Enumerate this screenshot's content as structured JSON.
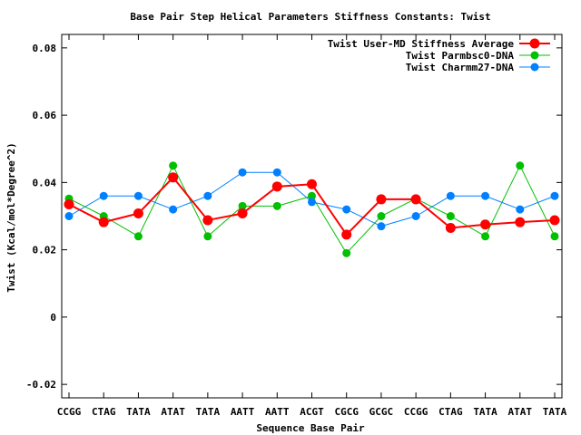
{
  "chart_data": {
    "type": "line",
    "title": "Base Pair Step Helical Parameters Stiffness Constants: Twist",
    "xlabel": "Sequence Base Pair",
    "ylabel": "Twist (Kcal/mol*Degree^2)",
    "categories": [
      "CCGG",
      "CTAG",
      "TATA",
      "ATAT",
      "TATA",
      "AATT",
      "AATT",
      "ACGT",
      "CGCG",
      "GCGC",
      "CCGG",
      "CTAG",
      "TATA",
      "ATAT",
      "TATA"
    ],
    "ylim": [
      -0.024,
      0.084
    ],
    "yticks": [
      -0.02,
      0,
      0.02,
      0.04,
      0.06,
      0.08
    ],
    "ytick_labels": [
      "-0.02",
      "0",
      "0.02",
      "0.04",
      "0.06",
      "0.08"
    ],
    "grid": false,
    "legend_position": "top-right",
    "series": [
      {
        "name": "Twist User-MD Stiffness Average",
        "color": "#ff0000",
        "values": [
          0.0335,
          0.0282,
          0.0308,
          0.0415,
          0.0288,
          0.0308,
          0.0388,
          0.0395,
          0.0245,
          0.035,
          0.035,
          0.0265,
          0.0275,
          0.0282,
          0.0288
        ]
      },
      {
        "name": "Twist Parmbsc0-DNA",
        "color": "#00c000",
        "values": [
          0.0352,
          0.03,
          0.024,
          0.045,
          0.024,
          0.033,
          0.033,
          0.036,
          0.019,
          0.03,
          0.0352,
          0.03,
          0.024,
          0.045,
          0.024
        ]
      },
      {
        "name": "Twist Charmm27-DNA",
        "color": "#0080ff",
        "values": [
          0.03,
          0.036,
          0.036,
          0.032,
          0.036,
          0.043,
          0.043,
          0.0342,
          0.032,
          0.027,
          0.03,
          0.036,
          0.036,
          0.032,
          0.036
        ]
      }
    ]
  }
}
